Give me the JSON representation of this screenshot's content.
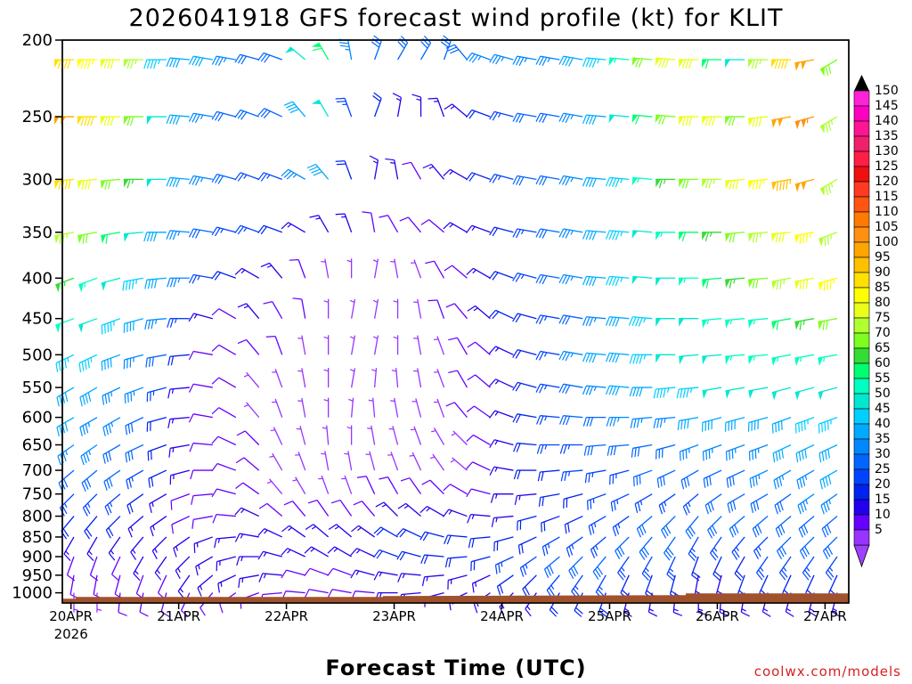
{
  "chart_data": {
    "type": "wind-barb-time-height",
    "title": "2026041918 GFS forecast wind profile (kt) for KLIT",
    "xlabel": "Forecast Time (UTC)",
    "ylabel": "",
    "credit": "coolwx.com/models",
    "x_ticks": [
      {
        "label": "20APR",
        "sub": "2026",
        "day": 0
      },
      {
        "label": "21APR",
        "sub": "",
        "day": 1
      },
      {
        "label": "22APR",
        "sub": "",
        "day": 2
      },
      {
        "label": "23APR",
        "sub": "",
        "day": 3
      },
      {
        "label": "24APR",
        "sub": "",
        "day": 4
      },
      {
        "label": "25APR",
        "sub": "",
        "day": 5
      },
      {
        "label": "26APR",
        "sub": "",
        "day": 6
      },
      {
        "label": "27APR",
        "sub": "",
        "day": 7
      }
    ],
    "x_range_days": [
      -0.08,
      7.22
    ],
    "y_ticks": [
      "200",
      "250",
      "300",
      "350",
      "400",
      "450",
      "500",
      "550",
      "600",
      "650",
      "700",
      "750",
      "800",
      "850",
      "900",
      "950",
      "1000"
    ],
    "y_range_hpa": [
      200,
      1030
    ],
    "y_scale": "log",
    "surface_pressure_hpa": 1012,
    "units": "kt",
    "colorbar": {
      "ticks": [
        "150",
        "145",
        "140",
        "135",
        "130",
        "125",
        "120",
        "115",
        "110",
        "105",
        "100",
        "95",
        "90",
        "85",
        "80",
        "75",
        "70",
        "65",
        "60",
        "55",
        "50",
        "45",
        "40",
        "35",
        "30",
        "25",
        "20",
        "15",
        "10",
        "5"
      ],
      "colors": [
        "#ff22d8",
        "#ff00c0",
        "#ff1493",
        "#f0206a",
        "#ff1e46",
        "#f01010",
        "#ff3a20",
        "#ff5510",
        "#ff7a00",
        "#ff9010",
        "#ffa500",
        "#ffc000",
        "#ffe000",
        "#ffff00",
        "#e9ff19",
        "#b0ff30",
        "#7cff20",
        "#33dd33",
        "#00ff70",
        "#00ffc0",
        "#00e8d0",
        "#00d0ff",
        "#00aaff",
        "#0088ff",
        "#0066ff",
        "#0044ff",
        "#0022ee",
        "#2200ee",
        "#6600ff",
        "#9933ff"
      ]
    },
    "levels_hpa": [
      200,
      250,
      300,
      350,
      400,
      450,
      500,
      550,
      600,
      650,
      700,
      750,
      800,
      850,
      900,
      950,
      1000
    ],
    "wind_speed_grid_kt": [
      [
        90,
        85,
        80,
        75,
        45,
        40,
        40,
        35,
        30,
        30,
        50,
        60,
        35,
        30,
        30,
        30,
        30,
        30,
        35,
        35,
        35,
        35,
        40,
        45,
        55,
        70,
        80,
        80,
        60,
        50,
        75,
        90,
        100,
        70
      ],
      [
        100,
        90,
        80,
        70,
        50,
        40,
        35,
        30,
        30,
        30,
        40,
        50,
        25,
        20,
        15,
        15,
        15,
        15,
        20,
        25,
        30,
        30,
        35,
        40,
        50,
        60,
        70,
        80,
        80,
        70,
        80,
        100,
        105,
        75
      ],
      [
        90,
        80,
        70,
        65,
        50,
        40,
        35,
        30,
        25,
        25,
        35,
        40,
        20,
        15,
        15,
        10,
        15,
        15,
        20,
        25,
        30,
        30,
        35,
        40,
        45,
        55,
        65,
        70,
        75,
        80,
        85,
        95,
        100,
        75
      ],
      [
        75,
        70,
        60,
        50,
        40,
        35,
        30,
        25,
        25,
        20,
        15,
        15,
        15,
        10,
        10,
        10,
        10,
        15,
        15,
        20,
        25,
        30,
        35,
        40,
        45,
        50,
        55,
        60,
        65,
        70,
        75,
        80,
        85,
        75
      ],
      [
        65,
        55,
        50,
        45,
        40,
        35,
        25,
        20,
        15,
        15,
        10,
        5,
        5,
        5,
        5,
        5,
        10,
        10,
        15,
        20,
        25,
        30,
        35,
        40,
        45,
        50,
        50,
        55,
        60,
        65,
        70,
        75,
        80,
        85
      ],
      [
        55,
        50,
        45,
        40,
        35,
        25,
        15,
        10,
        15,
        10,
        10,
        5,
        5,
        5,
        5,
        5,
        10,
        10,
        15,
        20,
        20,
        25,
        30,
        35,
        40,
        45,
        50,
        50,
        55,
        55,
        55,
        60,
        65,
        70
      ],
      [
        45,
        45,
        40,
        35,
        30,
        20,
        10,
        10,
        10,
        10,
        5,
        5,
        5,
        5,
        5,
        5,
        5,
        10,
        10,
        15,
        20,
        25,
        35,
        40,
        40,
        45,
        50,
        50,
        50,
        55,
        55,
        55,
        55,
        55
      ],
      [
        40,
        40,
        35,
        35,
        25,
        15,
        10,
        10,
        5,
        5,
        5,
        5,
        5,
        5,
        5,
        5,
        5,
        10,
        10,
        15,
        20,
        25,
        30,
        35,
        40,
        40,
        45,
        45,
        50,
        50,
        50,
        50,
        50,
        50
      ],
      [
        40,
        35,
        35,
        30,
        20,
        15,
        10,
        10,
        5,
        5,
        5,
        5,
        5,
        5,
        5,
        5,
        5,
        10,
        10,
        15,
        20,
        25,
        30,
        30,
        35,
        35,
        35,
        40,
        40,
        40,
        40,
        40,
        45,
        45
      ],
      [
        35,
        35,
        30,
        30,
        20,
        15,
        10,
        10,
        10,
        5,
        5,
        5,
        5,
        5,
        5,
        5,
        5,
        5,
        10,
        15,
        20,
        25,
        25,
        30,
        30,
        30,
        30,
        35,
        35,
        35,
        35,
        40,
        40,
        40
      ],
      [
        30,
        30,
        30,
        25,
        20,
        15,
        10,
        10,
        10,
        5,
        5,
        5,
        5,
        5,
        5,
        5,
        5,
        5,
        10,
        15,
        20,
        20,
        25,
        25,
        25,
        30,
        30,
        30,
        30,
        30,
        35,
        35,
        35,
        40
      ],
      [
        25,
        25,
        25,
        20,
        15,
        10,
        10,
        10,
        10,
        5,
        5,
        5,
        5,
        10,
        10,
        10,
        10,
        10,
        10,
        15,
        15,
        20,
        20,
        25,
        25,
        25,
        25,
        25,
        30,
        30,
        30,
        30,
        35,
        35
      ],
      [
        20,
        20,
        20,
        15,
        15,
        10,
        10,
        10,
        15,
        10,
        10,
        10,
        10,
        10,
        15,
        15,
        15,
        15,
        15,
        15,
        20,
        20,
        20,
        25,
        25,
        30,
        30,
        30,
        30,
        30,
        30,
        30,
        30,
        30
      ],
      [
        15,
        15,
        15,
        15,
        15,
        15,
        15,
        15,
        15,
        15,
        15,
        15,
        15,
        15,
        20,
        20,
        20,
        20,
        20,
        20,
        20,
        25,
        25,
        25,
        30,
        30,
        30,
        25,
        25,
        25,
        25,
        30,
        30,
        30
      ],
      [
        10,
        10,
        10,
        15,
        15,
        15,
        15,
        15,
        15,
        15,
        15,
        15,
        15,
        15,
        20,
        20,
        20,
        20,
        20,
        25,
        25,
        30,
        30,
        30,
        25,
        25,
        25,
        20,
        20,
        20,
        25,
        25,
        25,
        25
      ],
      [
        10,
        10,
        10,
        10,
        10,
        15,
        15,
        15,
        15,
        15,
        10,
        10,
        10,
        15,
        15,
        15,
        15,
        15,
        15,
        20,
        20,
        25,
        25,
        25,
        20,
        20,
        20,
        15,
        15,
        20,
        20,
        20,
        20,
        20
      ],
      [
        5,
        5,
        10,
        10,
        10,
        10,
        10,
        10,
        10,
        10,
        10,
        10,
        10,
        10,
        15,
        15,
        15,
        15,
        15,
        15,
        15,
        20,
        20,
        20,
        15,
        15,
        15,
        15,
        15,
        15,
        15,
        15,
        15,
        15
      ]
    ],
    "wind_direction_grid_deg": [
      [
        270,
        270,
        270,
        270,
        270,
        275,
        280,
        280,
        285,
        290,
        310,
        330,
        350,
        20,
        30,
        30,
        20,
        320,
        290,
        285,
        280,
        280,
        280,
        275,
        275,
        275,
        275,
        270,
        270,
        270,
        270,
        270,
        260,
        240
      ],
      [
        270,
        270,
        270,
        270,
        270,
        275,
        280,
        285,
        290,
        295,
        320,
        330,
        340,
        20,
        10,
        0,
        340,
        310,
        290,
        285,
        280,
        280,
        280,
        275,
        275,
        275,
        275,
        270,
        270,
        270,
        265,
        260,
        255,
        240
      ],
      [
        265,
        265,
        265,
        270,
        270,
        275,
        280,
        285,
        290,
        290,
        300,
        320,
        340,
        10,
        350,
        330,
        320,
        300,
        290,
        285,
        280,
        280,
        280,
        275,
        275,
        275,
        270,
        270,
        270,
        265,
        265,
        260,
        255,
        240
      ],
      [
        260,
        260,
        260,
        265,
        270,
        275,
        280,
        285,
        290,
        290,
        300,
        330,
        340,
        350,
        330,
        320,
        310,
        300,
        290,
        285,
        280,
        280,
        280,
        275,
        275,
        275,
        270,
        270,
        270,
        265,
        265,
        265,
        260,
        250
      ],
      [
        250,
        250,
        255,
        260,
        265,
        270,
        280,
        290,
        300,
        320,
        340,
        350,
        0,
        10,
        350,
        340,
        330,
        310,
        300,
        290,
        285,
        280,
        280,
        275,
        275,
        275,
        270,
        270,
        265,
        265,
        265,
        260,
        260,
        255
      ],
      [
        250,
        250,
        250,
        255,
        265,
        270,
        285,
        300,
        320,
        330,
        350,
        0,
        10,
        10,
        0,
        350,
        340,
        320,
        310,
        295,
        285,
        280,
        280,
        275,
        275,
        275,
        270,
        270,
        265,
        265,
        265,
        260,
        260,
        260
      ],
      [
        245,
        245,
        250,
        255,
        260,
        265,
        280,
        300,
        320,
        340,
        350,
        0,
        10,
        10,
        0,
        350,
        340,
        330,
        310,
        295,
        285,
        280,
        280,
        275,
        275,
        270,
        270,
        265,
        265,
        265,
        265,
        260,
        260,
        260
      ],
      [
        240,
        240,
        245,
        250,
        255,
        265,
        280,
        300,
        320,
        340,
        350,
        0,
        10,
        5,
        355,
        350,
        340,
        330,
        310,
        295,
        285,
        280,
        280,
        275,
        275,
        270,
        265,
        265,
        260,
        260,
        260,
        255,
        255,
        255
      ],
      [
        240,
        240,
        240,
        245,
        255,
        265,
        280,
        300,
        320,
        340,
        350,
        0,
        5,
        355,
        350,
        345,
        340,
        320,
        305,
        290,
        280,
        275,
        275,
        270,
        270,
        265,
        265,
        260,
        255,
        255,
        255,
        250,
        250,
        250
      ],
      [
        235,
        235,
        240,
        245,
        250,
        260,
        275,
        295,
        315,
        335,
        345,
        355,
        0,
        350,
        345,
        340,
        330,
        315,
        300,
        285,
        275,
        270,
        270,
        265,
        265,
        260,
        255,
        250,
        250,
        250,
        250,
        245,
        245,
        245
      ],
      [
        230,
        230,
        235,
        240,
        245,
        255,
        270,
        290,
        310,
        330,
        340,
        350,
        350,
        345,
        340,
        335,
        325,
        310,
        295,
        280,
        270,
        265,
        265,
        260,
        255,
        250,
        245,
        240,
        245,
        245,
        245,
        240,
        240,
        240
      ],
      [
        225,
        225,
        230,
        235,
        240,
        250,
        265,
        285,
        305,
        320,
        330,
        340,
        340,
        335,
        330,
        325,
        315,
        300,
        285,
        270,
        265,
        260,
        255,
        250,
        245,
        240,
        235,
        230,
        235,
        240,
        240,
        235,
        235,
        235
      ],
      [
        220,
        220,
        225,
        230,
        235,
        245,
        260,
        275,
        295,
        310,
        320,
        325,
        325,
        320,
        315,
        310,
        300,
        290,
        275,
        265,
        255,
        250,
        245,
        240,
        235,
        230,
        225,
        220,
        225,
        230,
        230,
        230,
        230,
        230
      ],
      [
        210,
        210,
        215,
        220,
        225,
        235,
        250,
        265,
        280,
        295,
        305,
        310,
        310,
        305,
        300,
        295,
        285,
        275,
        265,
        255,
        245,
        240,
        235,
        230,
        225,
        220,
        215,
        210,
        215,
        220,
        225,
        225,
        225,
        225
      ],
      [
        200,
        200,
        205,
        210,
        215,
        225,
        240,
        255,
        270,
        285,
        295,
        300,
        300,
        295,
        290,
        285,
        275,
        265,
        255,
        245,
        235,
        230,
        225,
        220,
        215,
        210,
        205,
        200,
        205,
        210,
        215,
        215,
        215,
        215
      ],
      [
        190,
        190,
        195,
        200,
        205,
        215,
        230,
        245,
        260,
        275,
        285,
        290,
        290,
        285,
        280,
        275,
        265,
        255,
        245,
        235,
        225,
        220,
        215,
        210,
        205,
        200,
        195,
        190,
        195,
        200,
        205,
        205,
        205,
        205
      ],
      [
        180,
        180,
        185,
        190,
        195,
        205,
        220,
        235,
        250,
        265,
        275,
        280,
        280,
        275,
        270,
        265,
        255,
        245,
        235,
        225,
        215,
        210,
        205,
        200,
        195,
        190,
        185,
        180,
        185,
        190,
        195,
        195,
        195,
        195
      ]
    ]
  }
}
